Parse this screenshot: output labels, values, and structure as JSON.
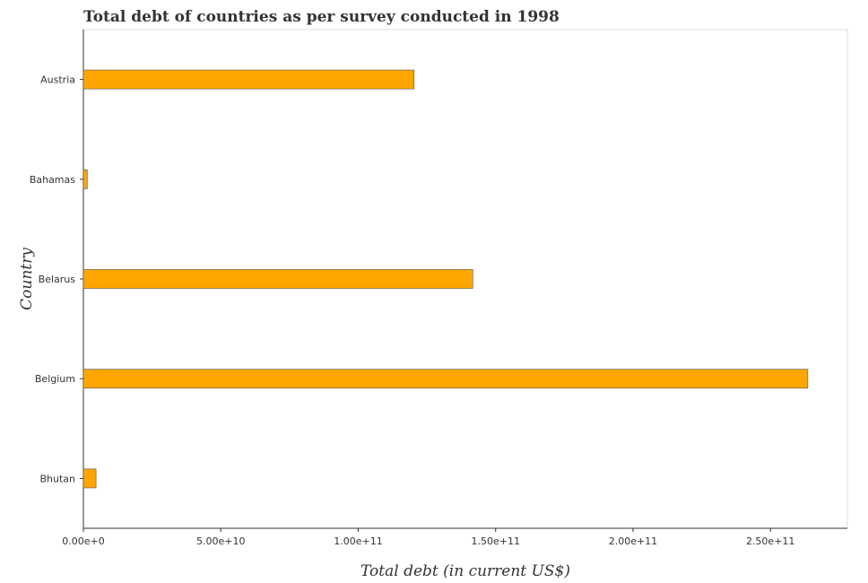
{
  "chart_data": {
    "type": "bar",
    "orientation": "horizontal",
    "title": "Total debt of countries as per survey conducted in 1998",
    "xlabel": "Total debt (in current US$)",
    "ylabel": "Country",
    "categories": [
      "Austria",
      "Bahamas",
      "Belarus",
      "Belgium",
      "Bhutan"
    ],
    "values": [
      120300000000,
      1400000000,
      141700000000,
      263600000000,
      4600000000
    ],
    "xlim": [
      0,
      278000000000
    ],
    "xticks": [
      0,
      50000000000,
      100000000000,
      150000000000,
      200000000000,
      250000000000
    ],
    "xtick_labels": [
      "0.00e+0",
      "5.00e+10",
      "1.00e+11",
      "1.50e+11",
      "2.00e+11",
      "2.50e+11"
    ],
    "bar_color": "#ffa500",
    "grid": false,
    "legend": false
  }
}
